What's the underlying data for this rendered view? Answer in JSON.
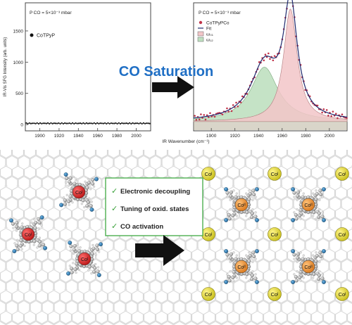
{
  "left_panel": {
    "pressure_label": "P CO = 5×10⁻³ mbar",
    "legend": "CoTPyP",
    "ylabel": "IR-Vis SFG Intensity (arb. units)",
    "yticks": [
      "0",
      "500",
      "1000",
      "1500"
    ],
    "xticks": [
      "1900",
      "1920",
      "1940",
      "1960",
      "1980",
      "2000"
    ]
  },
  "right_panel": {
    "pressure_label": "P CO = 5×10⁻³ mbar",
    "legend": [
      "CoTPyPCo",
      "Fit",
      "ω₀₁",
      "ω₁₂"
    ],
    "xticks": [
      "1900",
      "1920",
      "1940",
      "1960",
      "1980",
      "2000"
    ]
  },
  "shared_xlabel": "IR Wavenumber (cm⁻¹)",
  "arrow_label": "CO Saturation",
  "callout": {
    "items": [
      "Electronic decoupling",
      "Tuning of oxid. states",
      "CO activation"
    ]
  },
  "metal_labels": {
    "co_one": "Coᴵ",
    "co_two": "Coᴵᴵ"
  },
  "colors": {
    "red_center": "#d62a2a",
    "orange_center": "#f0962a",
    "yellow_adatom": "#e2dc3a",
    "arrow_text": "#1f6fc5",
    "peak1_fill": "#bfe0c0",
    "peak2_fill": "#f2c6c8",
    "check": "#3aa13a"
  },
  "chart_data": [
    {
      "type": "scatter",
      "series": [
        {
          "name": "CoTPyP",
          "x_range": [
            1885,
            2015
          ],
          "y_value": 20
        }
      ],
      "xlim": [
        1885,
        2015
      ],
      "ylim": [
        -100,
        1950
      ]
    },
    {
      "type": "line",
      "series": [
        {
          "name": "CoTPyPCo",
          "kind": "points"
        },
        {
          "name": "Fit",
          "kind": "line"
        },
        {
          "name": "ω₀₁",
          "center": 1945,
          "amplitude": 700,
          "width": 14
        },
        {
          "name": "ω₁₂",
          "center": 1967,
          "amplitude": 1450,
          "width": 7
        }
      ],
      "xlim": [
        1885,
        2015
      ],
      "ylim": [
        0,
        1650
      ]
    }
  ]
}
